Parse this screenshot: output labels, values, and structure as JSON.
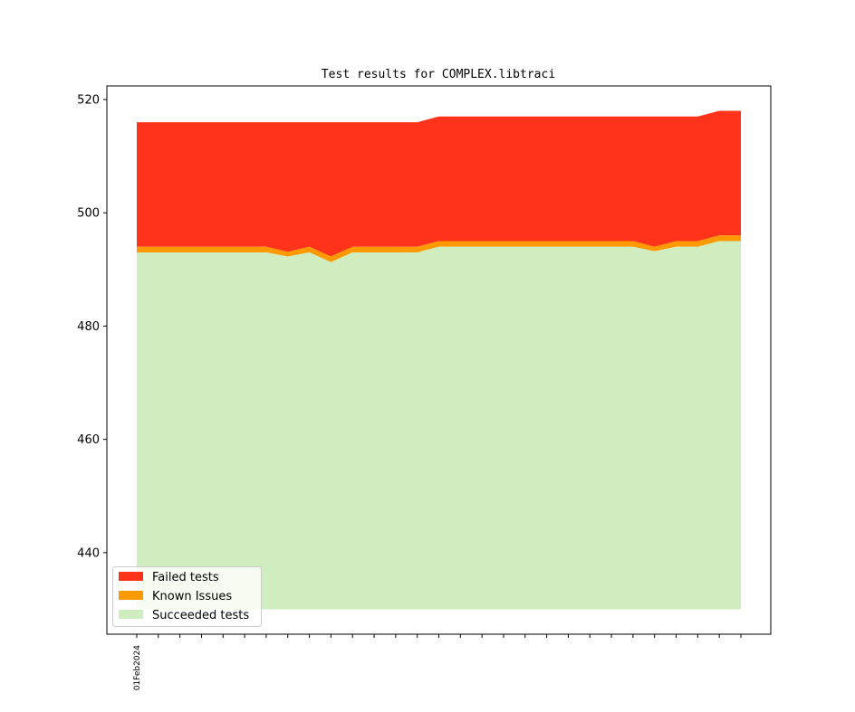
{
  "chart_data": {
    "type": "area",
    "stacked": true,
    "title": "Test results for COMPLEX.libtraci",
    "xlabel": "",
    "ylabel": "",
    "x_tick_labels": [
      "01Feb2024"
    ],
    "ylim": [
      425.6,
      522.4
    ],
    "y_ticks": [
      440,
      460,
      480,
      500,
      520
    ],
    "baseline": 430,
    "totals": [
      516,
      516,
      516,
      516,
      516,
      516,
      516,
      516,
      516,
      516,
      516,
      516,
      516,
      516,
      517,
      517,
      517,
      517,
      517,
      517,
      517,
      517,
      517,
      517,
      517,
      517,
      517,
      518,
      518
    ],
    "succeeded": [
      493,
      493,
      493,
      493,
      493,
      493,
      493,
      492.3,
      493,
      491.3,
      493,
      493,
      493,
      493,
      494,
      494,
      494,
      494,
      494,
      494,
      494,
      494,
      494,
      494,
      493.2,
      494,
      494,
      495,
      495
    ],
    "known": [
      494,
      494,
      494,
      494,
      494,
      494,
      494,
      493.1,
      494,
      492.3,
      494,
      494,
      494,
      494,
      495,
      495,
      495,
      495,
      495,
      495,
      495,
      495,
      495,
      495,
      494,
      495,
      495,
      496,
      496
    ],
    "series": [
      {
        "name": "Failed tests",
        "color": "#ff3319"
      },
      {
        "name": "Known Issues",
        "color": "#ff9900"
      },
      {
        "name": "Succeeded tests",
        "color": "#cfedbf"
      }
    ],
    "legend_position": "lower-left",
    "grid": false
  }
}
